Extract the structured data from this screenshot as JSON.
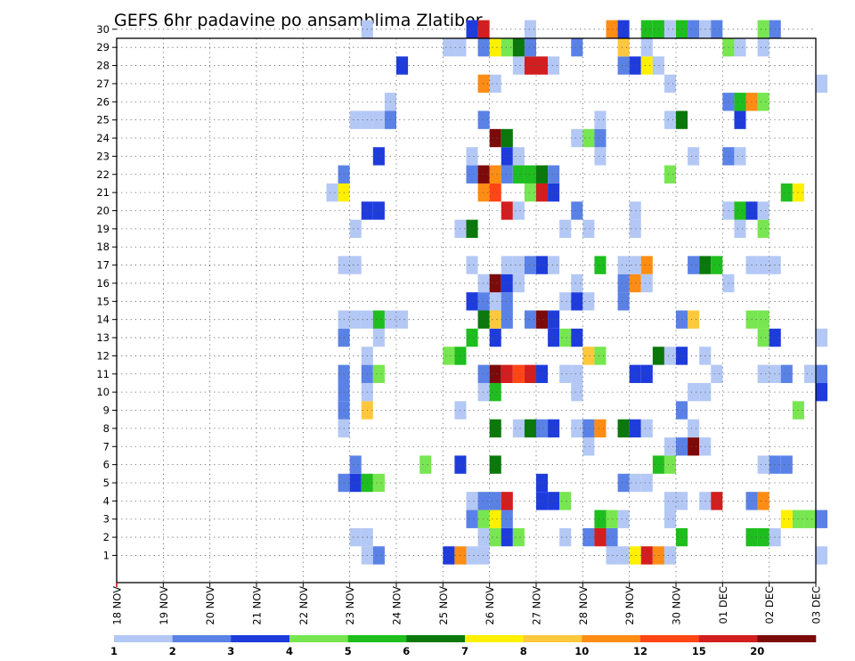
{
  "chart_data": {
    "type": "heatmap",
    "title": "GEFS 6hr padavine po ansamblima Zlatibor",
    "xlabel": "",
    "ylabel": "",
    "x_ticks": [
      "18 NOV",
      "19 NOV",
      "20 NOV",
      "21 NOV",
      "22 NOV",
      "23 NOV",
      "24 NOV",
      "25 NOV",
      "26 NOV",
      "27 NOV",
      "28 NOV",
      "29 NOV",
      "30 NOV",
      "01 DEC",
      "02 DEC",
      "03 DEC"
    ],
    "xlim": [
      "18 NOV",
      "03 DEC"
    ],
    "y_ticks": [
      1,
      2,
      3,
      4,
      5,
      6,
      7,
      8,
      9,
      10,
      11,
      12,
      13,
      14,
      15,
      16,
      17,
      18,
      19,
      20,
      21,
      22,
      23,
      24,
      25,
      26,
      27,
      28,
      29,
      30
    ],
    "ylim": [
      0,
      30
    ],
    "time_step_hours": 6,
    "grid": true,
    "colorbar": {
      "bounds": [
        "1",
        "2",
        "3",
        "4",
        "5",
        "6",
        "7",
        "8",
        "10",
        "12",
        "15",
        "20"
      ],
      "colors": [
        "#b4c8f5",
        "#5a82e6",
        "#1e3cdc",
        "#78e650",
        "#1ebe1e",
        "#0a780a",
        "#fff000",
        "#ffc83c",
        "#ff8c14",
        "#ff4614",
        "#d21e1e",
        "#7d0a0a"
      ],
      "placement": "bottom"
    },
    "legend_position": "bottom",
    "cells": [
      [
        "23 NOV 06Z",
        1,
        1
      ],
      [
        "23 NOV 12Z",
        1,
        2
      ],
      [
        "25 NOV 00Z",
        1,
        3
      ],
      [
        "25 NOV 06Z",
        1,
        9
      ],
      [
        "25 NOV 12Z",
        1,
        1
      ],
      [
        "25 NOV 18Z",
        1,
        1
      ],
      [
        "28 NOV 12Z",
        1,
        1
      ],
      [
        "28 NOV 18Z",
        1,
        1
      ],
      [
        "29 NOV 00Z",
        1,
        7
      ],
      [
        "29 NOV 06Z",
        1,
        11
      ],
      [
        "29 NOV 12Z",
        1,
        9
      ],
      [
        "29 NOV 18Z",
        1,
        1
      ],
      [
        "03 DEC 00Z",
        1,
        1
      ],
      [
        "23 NOV 00Z",
        2,
        1
      ],
      [
        "23 NOV 06Z",
        2,
        1
      ],
      [
        "25 NOV 18Z",
        2,
        1
      ],
      [
        "26 NOV 00Z",
        2,
        4
      ],
      [
        "26 NOV 06Z",
        2,
        3
      ],
      [
        "26 NOV 12Z",
        2,
        4
      ],
      [
        "27 NOV 12Z",
        2,
        1
      ],
      [
        "28 NOV 00Z",
        2,
        2
      ],
      [
        "28 NOV 06Z",
        2,
        11
      ],
      [
        "28 NOV 12Z",
        2,
        2
      ],
      [
        "30 NOV 00Z",
        2,
        5
      ],
      [
        "01 DEC 12Z",
        2,
        5
      ],
      [
        "01 DEC 18Z",
        2,
        5
      ],
      [
        "02 DEC 00Z",
        2,
        1
      ],
      [
        "25 NOV 12Z",
        3,
        2
      ],
      [
        "25 NOV 18Z",
        3,
        4
      ],
      [
        "26 NOV 00Z",
        3,
        7
      ],
      [
        "26 NOV 06Z",
        3,
        2
      ],
      [
        "28 NOV 06Z",
        3,
        5
      ],
      [
        "28 NOV 12Z",
        3,
        4
      ],
      [
        "28 NOV 18Z",
        3,
        1
      ],
      [
        "29 NOV 18Z",
        3,
        1
      ],
      [
        "02 DEC 06Z",
        3,
        7
      ],
      [
        "02 DEC 12Z",
        3,
        4
      ],
      [
        "02 DEC 18Z",
        3,
        4
      ],
      [
        "03 DEC 00Z",
        3,
        2
      ],
      [
        "25 NOV 12Z",
        4,
        1
      ],
      [
        "25 NOV 18Z",
        4,
        2
      ],
      [
        "26 NOV 00Z",
        4,
        2
      ],
      [
        "26 NOV 06Z",
        4,
        11
      ],
      [
        "27 NOV 00Z",
        4,
        3
      ],
      [
        "27 NOV 06Z",
        4,
        3
      ],
      [
        "27 NOV 12Z",
        4,
        4
      ],
      [
        "29 NOV 18Z",
        4,
        1
      ],
      [
        "30 NOV 00Z",
        4,
        1
      ],
      [
        "30 NOV 12Z",
        4,
        1
      ],
      [
        "30 NOV 18Z",
        4,
        11
      ],
      [
        "01 DEC 12Z",
        4,
        2
      ],
      [
        "01 DEC 18Z",
        4,
        9
      ],
      [
        "22 NOV 18Z",
        5,
        2
      ],
      [
        "23 NOV 00Z",
        5,
        3
      ],
      [
        "23 NOV 06Z",
        5,
        5
      ],
      [
        "23 NOV 12Z",
        5,
        4
      ],
      [
        "27 NOV 00Z",
        5,
        3
      ],
      [
        "28 NOV 18Z",
        5,
        2
      ],
      [
        "29 NOV 00Z",
        5,
        1
      ],
      [
        "29 NOV 06Z",
        5,
        1
      ],
      [
        "23 NOV 00Z",
        6,
        2
      ],
      [
        "24 NOV 12Z",
        6,
        4
      ],
      [
        "25 NOV 06Z",
        6,
        3
      ],
      [
        "26 NOV 00Z",
        6,
        6
      ],
      [
        "29 NOV 12Z",
        6,
        5
      ],
      [
        "29 NOV 18Z",
        6,
        4
      ],
      [
        "01 DEC 18Z",
        6,
        1
      ],
      [
        "02 DEC 00Z",
        6,
        2
      ],
      [
        "02 DEC 06Z",
        6,
        2
      ],
      [
        "28 NOV 00Z",
        7,
        1
      ],
      [
        "29 NOV 18Z",
        7,
        1
      ],
      [
        "30 NOV 00Z",
        7,
        2
      ],
      [
        "30 NOV 06Z",
        7,
        12
      ],
      [
        "30 NOV 12Z",
        7,
        1
      ],
      [
        "22 NOV 18Z",
        8,
        1
      ],
      [
        "26 NOV 00Z",
        8,
        6
      ],
      [
        "26 NOV 12Z",
        8,
        1
      ],
      [
        "26 NOV 18Z",
        8,
        6
      ],
      [
        "27 NOV 00Z",
        8,
        2
      ],
      [
        "27 NOV 06Z",
        8,
        3
      ],
      [
        "27 NOV 18Z",
        8,
        1
      ],
      [
        "28 NOV 00Z",
        8,
        2
      ],
      [
        "28 NOV 06Z",
        8,
        9
      ],
      [
        "28 NOV 18Z",
        8,
        6
      ],
      [
        "29 NOV 00Z",
        8,
        3
      ],
      [
        "29 NOV 06Z",
        8,
        1
      ],
      [
        "30 NOV 06Z",
        8,
        1
      ],
      [
        "22 NOV 18Z",
        9,
        2
      ],
      [
        "23 NOV 06Z",
        9,
        8
      ],
      [
        "25 NOV 06Z",
        9,
        1
      ],
      [
        "30 NOV 00Z",
        9,
        2
      ],
      [
        "02 DEC 12Z",
        9,
        4
      ],
      [
        "22 NOV 18Z",
        10,
        2
      ],
      [
        "23 NOV 06Z",
        10,
        1
      ],
      [
        "25 NOV 18Z",
        10,
        1
      ],
      [
        "26 NOV 00Z",
        10,
        5
      ],
      [
        "27 NOV 18Z",
        10,
        1
      ],
      [
        "30 NOV 06Z",
        10,
        1
      ],
      [
        "30 NOV 12Z",
        10,
        1
      ],
      [
        "03 DEC 00Z",
        10,
        3
      ],
      [
        "22 NOV 18Z",
        11,
        2
      ],
      [
        "23 NOV 06Z",
        11,
        2
      ],
      [
        "23 NOV 12Z",
        11,
        4
      ],
      [
        "25 NOV 18Z",
        11,
        2
      ],
      [
        "26 NOV 00Z",
        11,
        12
      ],
      [
        "26 NOV 06Z",
        11,
        11
      ],
      [
        "26 NOV 12Z",
        11,
        10
      ],
      [
        "26 NOV 18Z",
        11,
        11
      ],
      [
        "27 NOV 00Z",
        11,
        3
      ],
      [
        "27 NOV 12Z",
        11,
        1
      ],
      [
        "27 NOV 18Z",
        11,
        1
      ],
      [
        "29 NOV 00Z",
        11,
        3
      ],
      [
        "29 NOV 06Z",
        11,
        3
      ],
      [
        "30 NOV 18Z",
        11,
        1
      ],
      [
        "01 DEC 18Z",
        11,
        1
      ],
      [
        "02 DEC 00Z",
        11,
        1
      ],
      [
        "02 DEC 06Z",
        11,
        2
      ],
      [
        "02 DEC 18Z",
        11,
        1
      ],
      [
        "03 DEC 00Z",
        11,
        2
      ],
      [
        "23 NOV 06Z",
        12,
        1
      ],
      [
        "25 NOV 00Z",
        12,
        4
      ],
      [
        "25 NOV 06Z",
        12,
        5
      ],
      [
        "28 NOV 00Z",
        12,
        8
      ],
      [
        "28 NOV 06Z",
        12,
        4
      ],
      [
        "29 NOV 12Z",
        12,
        6
      ],
      [
        "29 NOV 18Z",
        12,
        1
      ],
      [
        "30 NOV 00Z",
        12,
        3
      ],
      [
        "30 NOV 12Z",
        12,
        1
      ],
      [
        "22 NOV 18Z",
        13,
        2
      ],
      [
        "23 NOV 12Z",
        13,
        1
      ],
      [
        "25 NOV 12Z",
        13,
        5
      ],
      [
        "26 NOV 00Z",
        13,
        3
      ],
      [
        "27 NOV 06Z",
        13,
        3
      ],
      [
        "27 NOV 12Z",
        13,
        4
      ],
      [
        "27 NOV 18Z",
        13,
        3
      ],
      [
        "01 DEC 18Z",
        13,
        4
      ],
      [
        "02 DEC 00Z",
        13,
        3
      ],
      [
        "03 DEC 00Z",
        13,
        1
      ],
      [
        "22 NOV 18Z",
        14,
        1
      ],
      [
        "23 NOV 00Z",
        14,
        1
      ],
      [
        "23 NOV 06Z",
        14,
        1
      ],
      [
        "23 NOV 12Z",
        14,
        5
      ],
      [
        "23 NOV 18Z",
        14,
        1
      ],
      [
        "24 NOV 00Z",
        14,
        1
      ],
      [
        "25 NOV 18Z",
        14,
        6
      ],
      [
        "26 NOV 00Z",
        14,
        8
      ],
      [
        "26 NOV 06Z",
        14,
        2
      ],
      [
        "26 NOV 18Z",
        14,
        2
      ],
      [
        "27 NOV 00Z",
        14,
        12
      ],
      [
        "27 NOV 06Z",
        14,
        3
      ],
      [
        "30 NOV 00Z",
        14,
        2
      ],
      [
        "30 NOV 06Z",
        14,
        8
      ],
      [
        "01 DEC 12Z",
        14,
        4
      ],
      [
        "01 DEC 18Z",
        14,
        4
      ],
      [
        "25 NOV 12Z",
        15,
        3
      ],
      [
        "25 NOV 18Z",
        15,
        2
      ],
      [
        "26 NOV 00Z",
        15,
        1
      ],
      [
        "26 NOV 06Z",
        15,
        2
      ],
      [
        "27 NOV 12Z",
        15,
        1
      ],
      [
        "27 NOV 18Z",
        15,
        3
      ],
      [
        "28 NOV 00Z",
        15,
        1
      ],
      [
        "28 NOV 18Z",
        15,
        2
      ],
      [
        "25 NOV 18Z",
        16,
        1
      ],
      [
        "26 NOV 00Z",
        16,
        12
      ],
      [
        "26 NOV 06Z",
        16,
        3
      ],
      [
        "26 NOV 12Z",
        16,
        1
      ],
      [
        "27 NOV 18Z",
        16,
        1
      ],
      [
        "28 NOV 18Z",
        16,
        2
      ],
      [
        "29 NOV 00Z",
        16,
        9
      ],
      [
        "29 NOV 06Z",
        16,
        1
      ],
      [
        "01 DEC 00Z",
        16,
        1
      ],
      [
        "22 NOV 18Z",
        17,
        1
      ],
      [
        "23 NOV 00Z",
        17,
        1
      ],
      [
        "25 NOV 12Z",
        17,
        1
      ],
      [
        "26 NOV 06Z",
        17,
        1
      ],
      [
        "26 NOV 12Z",
        17,
        1
      ],
      [
        "26 NOV 18Z",
        17,
        2
      ],
      [
        "27 NOV 00Z",
        17,
        3
      ],
      [
        "27 NOV 06Z",
        17,
        1
      ],
      [
        "28 NOV 06Z",
        17,
        5
      ],
      [
        "28 NOV 18Z",
        17,
        1
      ],
      [
        "29 NOV 00Z",
        17,
        1
      ],
      [
        "29 NOV 06Z",
        17,
        9
      ],
      [
        "30 NOV 06Z",
        17,
        2
      ],
      [
        "30 NOV 12Z",
        17,
        6
      ],
      [
        "30 NOV 18Z",
        17,
        5
      ],
      [
        "01 DEC 12Z",
        17,
        1
      ],
      [
        "01 DEC 18Z",
        17,
        1
      ],
      [
        "02 DEC 00Z",
        17,
        1
      ],
      [
        "23 NOV 00Z",
        19,
        1
      ],
      [
        "25 NOV 06Z",
        19,
        1
      ],
      [
        "25 NOV 12Z",
        19,
        6
      ],
      [
        "27 NOV 12Z",
        19,
        1
      ],
      [
        "28 NOV 00Z",
        19,
        1
      ],
      [
        "29 NOV 00Z",
        19,
        1
      ],
      [
        "01 DEC 06Z",
        19,
        1
      ],
      [
        "01 DEC 18Z",
        19,
        4
      ],
      [
        "23 NOV 06Z",
        20,
        3
      ],
      [
        "23 NOV 12Z",
        20,
        3
      ],
      [
        "26 NOV 06Z",
        20,
        11
      ],
      [
        "26 NOV 12Z",
        20,
        1
      ],
      [
        "27 NOV 18Z",
        20,
        2
      ],
      [
        "29 NOV 00Z",
        20,
        1
      ],
      [
        "01 DEC 00Z",
        20,
        1
      ],
      [
        "01 DEC 06Z",
        20,
        5
      ],
      [
        "01 DEC 12Z",
        20,
        3
      ],
      [
        "01 DEC 18Z",
        20,
        1
      ],
      [
        "22 NOV 12Z",
        21,
        1
      ],
      [
        "22 NOV 18Z",
        21,
        7
      ],
      [
        "25 NOV 18Z",
        21,
        9
      ],
      [
        "26 NOV 00Z",
        21,
        10
      ],
      [
        "26 NOV 18Z",
        21,
        4
      ],
      [
        "27 NOV 00Z",
        21,
        11
      ],
      [
        "27 NOV 06Z",
        21,
        3
      ],
      [
        "02 DEC 06Z",
        21,
        5
      ],
      [
        "02 DEC 12Z",
        21,
        7
      ],
      [
        "22 NOV 18Z",
        22,
        2
      ],
      [
        "25 NOV 12Z",
        22,
        2
      ],
      [
        "25 NOV 18Z",
        22,
        12
      ],
      [
        "26 NOV 00Z",
        22,
        9
      ],
      [
        "26 NOV 06Z",
        22,
        2
      ],
      [
        "26 NOV 12Z",
        22,
        5
      ],
      [
        "26 NOV 18Z",
        22,
        5
      ],
      [
        "27 NOV 00Z",
        22,
        6
      ],
      [
        "27 NOV 06Z",
        22,
        2
      ],
      [
        "29 NOV 18Z",
        22,
        4
      ],
      [
        "23 NOV 12Z",
        23,
        3
      ],
      [
        "25 NOV 12Z",
        23,
        1
      ],
      [
        "26 NOV 06Z",
        23,
        3
      ],
      [
        "26 NOV 12Z",
        23,
        1
      ],
      [
        "28 NOV 06Z",
        23,
        1
      ],
      [
        "30 NOV 06Z",
        23,
        1
      ],
      [
        "01 DEC 00Z",
        23,
        2
      ],
      [
        "01 DEC 06Z",
        23,
        1
      ],
      [
        "26 NOV 00Z",
        24,
        12
      ],
      [
        "26 NOV 06Z",
        24,
        6
      ],
      [
        "27 NOV 18Z",
        24,
        1
      ],
      [
        "28 NOV 00Z",
        24,
        4
      ],
      [
        "28 NOV 06Z",
        24,
        2
      ],
      [
        "23 NOV 00Z",
        25,
        1
      ],
      [
        "23 NOV 06Z",
        25,
        1
      ],
      [
        "23 NOV 12Z",
        25,
        1
      ],
      [
        "23 NOV 18Z",
        25,
        2
      ],
      [
        "25 NOV 18Z",
        25,
        2
      ],
      [
        "28 NOV 06Z",
        25,
        1
      ],
      [
        "29 NOV 18Z",
        25,
        1
      ],
      [
        "30 NOV 00Z",
        25,
        6
      ],
      [
        "01 DEC 06Z",
        25,
        3
      ],
      [
        "23 NOV 18Z",
        26,
        1
      ],
      [
        "01 DEC 00Z",
        26,
        2
      ],
      [
        "01 DEC 06Z",
        26,
        5
      ],
      [
        "01 DEC 12Z",
        26,
        9
      ],
      [
        "01 DEC 18Z",
        26,
        4
      ],
      [
        "25 NOV 18Z",
        27,
        9
      ],
      [
        "26 NOV 00Z",
        27,
        1
      ],
      [
        "29 NOV 18Z",
        27,
        1
      ],
      [
        "03 DEC 00Z",
        27,
        1
      ],
      [
        "24 NOV 00Z",
        28,
        3
      ],
      [
        "26 NOV 12Z",
        28,
        1
      ],
      [
        "26 NOV 18Z",
        28,
        11
      ],
      [
        "27 NOV 00Z",
        28,
        11
      ],
      [
        "27 NOV 06Z",
        28,
        1
      ],
      [
        "28 NOV 18Z",
        28,
        2
      ],
      [
        "29 NOV 00Z",
        28,
        3
      ],
      [
        "29 NOV 06Z",
        28,
        7
      ],
      [
        "29 NOV 12Z",
        28,
        1
      ],
      [
        "25 NOV 00Z",
        29,
        1
      ],
      [
        "25 NOV 06Z",
        29,
        1
      ],
      [
        "25 NOV 18Z",
        29,
        2
      ],
      [
        "26 NOV 00Z",
        29,
        7
      ],
      [
        "26 NOV 06Z",
        29,
        4
      ],
      [
        "26 NOV 12Z",
        29,
        6
      ],
      [
        "26 NOV 18Z",
        29,
        2
      ],
      [
        "27 NOV 18Z",
        29,
        2
      ],
      [
        "28 NOV 18Z",
        29,
        8
      ],
      [
        "29 NOV 06Z",
        29,
        1
      ],
      [
        "01 DEC 00Z",
        29,
        4
      ],
      [
        "01 DEC 06Z",
        29,
        1
      ],
      [
        "01 DEC 18Z",
        29,
        1
      ],
      [
        "23 NOV 06Z",
        30,
        1
      ],
      [
        "25 NOV 12Z",
        30,
        3
      ],
      [
        "25 NOV 18Z",
        30,
        11
      ],
      [
        "26 NOV 18Z",
        30,
        1
      ],
      [
        "28 NOV 12Z",
        30,
        9
      ],
      [
        "28 NOV 18Z",
        30,
        3
      ],
      [
        "29 NOV 06Z",
        30,
        5
      ],
      [
        "29 NOV 12Z",
        30,
        5
      ],
      [
        "29 NOV 18Z",
        30,
        1
      ],
      [
        "30 NOV 00Z",
        30,
        5
      ],
      [
        "30 NOV 06Z",
        30,
        2
      ],
      [
        "30 NOV 12Z",
        30,
        1
      ],
      [
        "30 NOV 18Z",
        30,
        2
      ],
      [
        "01 DEC 18Z",
        30,
        4
      ],
      [
        "02 DEC 00Z",
        30,
        2
      ]
    ]
  }
}
